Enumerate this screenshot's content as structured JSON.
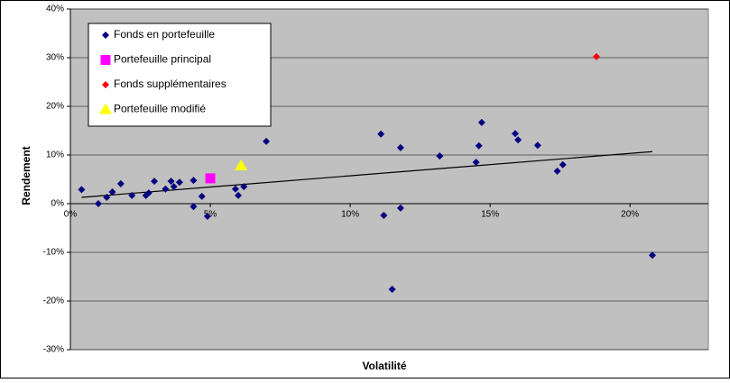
{
  "chart_data": {
    "type": "scatter",
    "x_label": "Volatilité",
    "y_label": "Rendement",
    "xlim": [
      0,
      22.8
    ],
    "ylim": [
      -30,
      40
    ],
    "xticks": [
      {
        "value": 0,
        "label": "0%"
      },
      {
        "value": 5,
        "label": "5%"
      },
      {
        "value": 10,
        "label": "10%"
      },
      {
        "value": 15,
        "label": "15%"
      },
      {
        "value": 20,
        "label": "20%"
      }
    ],
    "yticks": [
      {
        "value": -30,
        "label": "-30%"
      },
      {
        "value": -20,
        "label": "-20%"
      },
      {
        "value": -10,
        "label": "-10%"
      },
      {
        "value": 0,
        "label": "0%"
      },
      {
        "value": 10,
        "label": "10%"
      },
      {
        "value": 20,
        "label": "20%"
      },
      {
        "value": 30,
        "label": "30%"
      },
      {
        "value": 40,
        "label": "40%"
      }
    ],
    "grid": true,
    "legend": "top-left",
    "plot_background": "#c0c0c0",
    "series": [
      {
        "name": "Fonds en portefeuille",
        "color": "#000080",
        "marker": "diamond",
        "x": [
          0.4,
          1.0,
          1.3,
          1.5,
          1.8,
          2.2,
          2.7,
          2.8,
          3.0,
          3.4,
          3.6,
          3.7,
          3.9,
          4.4,
          4.4,
          4.7,
          4.9,
          5.9,
          6.0,
          6.2,
          7.0,
          11.1,
          11.2,
          11.5,
          11.8,
          11.8,
          13.2,
          14.5,
          14.6,
          14.7,
          15.9,
          16.0,
          16.7,
          17.4,
          17.6,
          20.8
        ],
        "y": [
          2.9,
          0.0,
          1.3,
          2.4,
          4.1,
          1.7,
          1.7,
          2.2,
          4.6,
          3.0,
          4.6,
          3.5,
          4.4,
          4.8,
          -0.6,
          1.5,
          -2.6,
          3.0,
          1.7,
          3.5,
          12.8,
          14.3,
          -2.4,
          -17.6,
          11.5,
          -0.9,
          9.8,
          8.5,
          11.9,
          16.7,
          14.4,
          13.1,
          12.0,
          6.7,
          8.0,
          -10.6
        ]
      },
      {
        "name": "Portefeuille principal",
        "color": "#ff00ff",
        "marker": "square",
        "x": [
          5.0
        ],
        "y": [
          5.2
        ]
      },
      {
        "name": "Fonds supplémentaires",
        "color": "#ff0000",
        "marker": "diamond",
        "x": [
          18.8
        ],
        "y": [
          30.2
        ]
      },
      {
        "name": "Portefeuille modifié",
        "color": "#ffff00",
        "marker": "triangle",
        "x": [
          6.1
        ],
        "y": [
          7.8
        ]
      }
    ],
    "trendline": {
      "color": "#000000",
      "x": [
        0.4,
        20.8
      ],
      "y": [
        1.3,
        10.7
      ]
    }
  }
}
